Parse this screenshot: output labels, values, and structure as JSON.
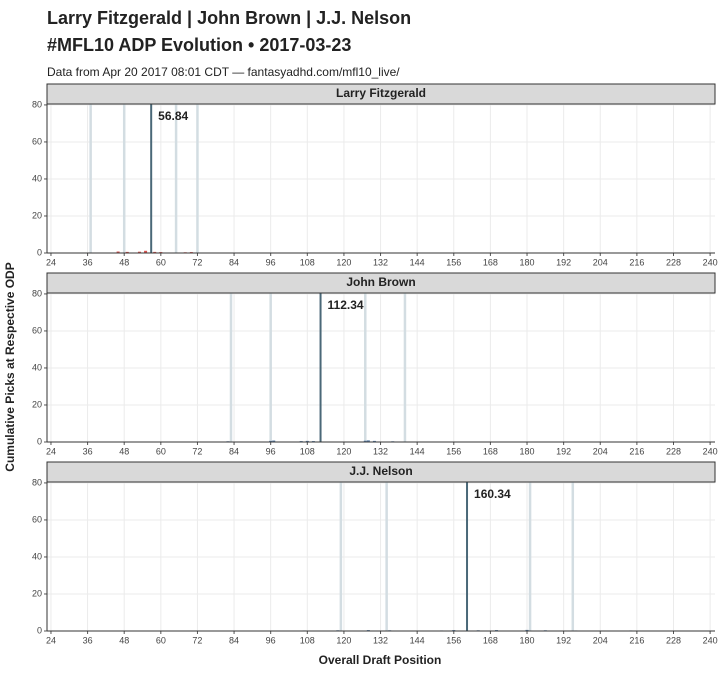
{
  "title": [
    "Larry Fitzgerald | John Brown | J.J. Nelson",
    "#MFL10 ADP Evolution • 2017-03-23"
  ],
  "subtitle": "Data from Apr 20 2017 08:01 CDT — fantasyadhd.com/mfl10_live/",
  "x_label": "Overall Draft Position",
  "y_label": "Cumulative Picks at Respective ODP",
  "chart_data": [
    {
      "type": "bar",
      "panel_title": "Larry Fitzgerald",
      "adp": 56.84,
      "adp_color": "#4a6878",
      "weekly_adp": [
        37,
        48,
        65,
        72
      ],
      "weekly_color": "#d3dde2",
      "x": [
        46,
        49,
        53,
        55,
        58,
        60,
        68,
        70
      ],
      "values": [
        0.8,
        0.6,
        0.7,
        1.2,
        0.6,
        0.5,
        0.4,
        0.5
      ],
      "color": "#d9534f",
      "xlim": [
        22.7,
        241.6
      ],
      "ylim": [
        0,
        80.5
      ],
      "xticks": [
        24,
        36,
        48,
        60,
        72,
        84,
        96,
        108,
        120,
        132,
        144,
        156,
        168,
        180,
        192,
        204,
        216,
        228,
        240
      ],
      "yticks": [
        0,
        20,
        40,
        60,
        80
      ],
      "grid": true
    },
    {
      "type": "bar",
      "panel_title": "John Brown",
      "adp": 112.34,
      "adp_color": "#4a6878",
      "weekly_adp": [
        83,
        96,
        127,
        140
      ],
      "weekly_color": "#d3dde2",
      "x": [
        82,
        96,
        97,
        106,
        108,
        110,
        127,
        128,
        130,
        136
      ],
      "values": [
        0.4,
        0.6,
        0.8,
        0.5,
        0.6,
        0.5,
        0.7,
        0.9,
        0.6,
        0.4
      ],
      "color": "#5b7fa8",
      "xlim": [
        22.7,
        241.6
      ],
      "ylim": [
        0,
        80.5
      ],
      "xticks": [
        24,
        36,
        48,
        60,
        72,
        84,
        96,
        108,
        120,
        132,
        144,
        156,
        168,
        180,
        192,
        204,
        216,
        228,
        240
      ],
      "yticks": [
        0,
        20,
        40,
        60,
        80
      ],
      "grid": true
    },
    {
      "type": "bar",
      "panel_title": "J.J. Nelson",
      "adp": 160.34,
      "adp_color": "#4a6878",
      "weekly_adp": [
        119,
        134,
        181,
        195
      ],
      "weekly_color": "#d3dde2",
      "x": [
        107,
        118,
        128,
        135,
        152,
        156,
        164,
        170,
        180,
        186,
        196,
        214
      ],
      "values": [
        0.3,
        0.4,
        0.5,
        0.4,
        0.3,
        0.5,
        0.4,
        0.5,
        0.6,
        0.4,
        0.3,
        0.3
      ],
      "color": "#5b7fa8",
      "xlim": [
        22.7,
        241.6
      ],
      "ylim": [
        0,
        80.5
      ],
      "xticks": [
        24,
        36,
        48,
        60,
        72,
        84,
        96,
        108,
        120,
        132,
        144,
        156,
        168,
        180,
        192,
        204,
        216,
        228,
        240
      ],
      "yticks": [
        0,
        20,
        40,
        60,
        80
      ],
      "grid": true
    }
  ]
}
